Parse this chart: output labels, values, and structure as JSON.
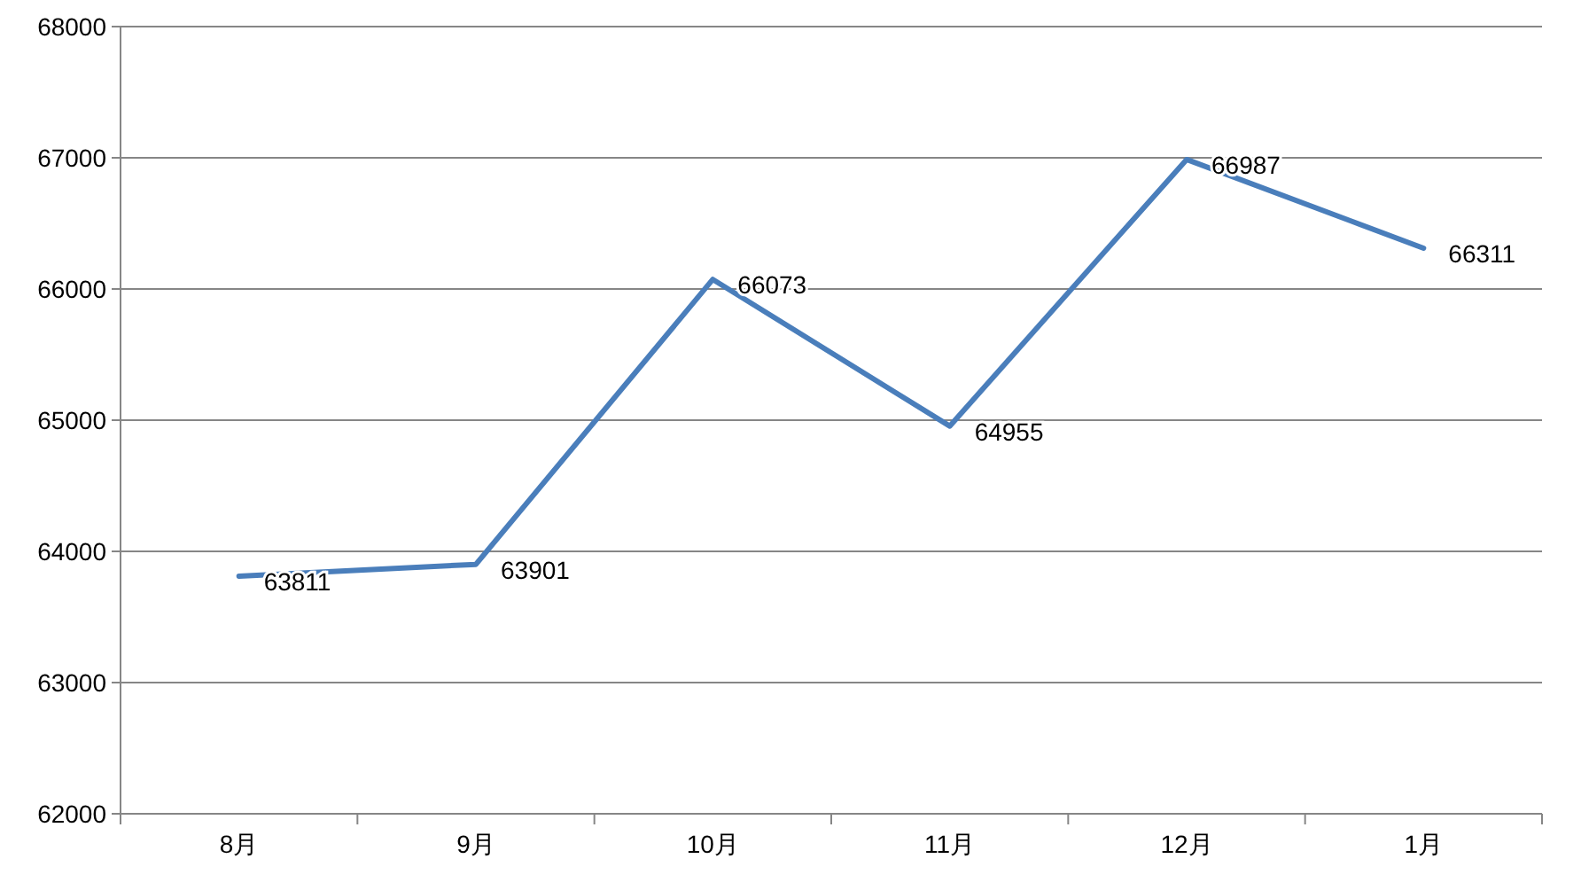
{
  "chart_data": {
    "type": "line",
    "categories": [
      "8月",
      "9月",
      "10月",
      "11月",
      "12月",
      "1月"
    ],
    "series": [
      {
        "color": "#4a7ebb",
        "values": [
          63811,
          63901,
          66073,
          64955,
          66987,
          66311
        ]
      }
    ],
    "ylim": [
      62000,
      68000
    ],
    "yticks": [
      62000,
      63000,
      64000,
      65000,
      66000,
      67000,
      68000
    ],
    "grid": "y",
    "data_labels": true,
    "marker": "none",
    "line_style": "solid"
  }
}
